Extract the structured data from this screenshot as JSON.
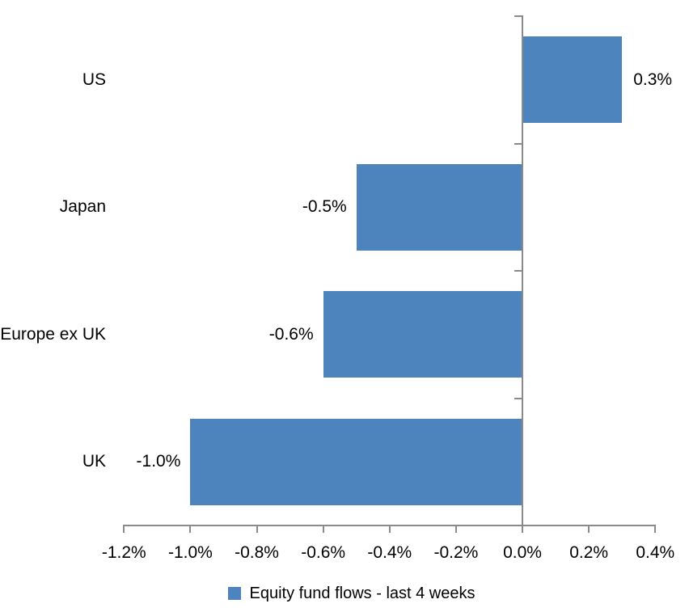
{
  "chart_data": {
    "type": "bar",
    "orientation": "horizontal",
    "title": "",
    "xlabel": "",
    "ylabel": "",
    "categories": [
      "US",
      "Japan",
      "Europe ex UK",
      "UK"
    ],
    "values": [
      0.3,
      -0.5,
      -0.6,
      -1.0
    ],
    "data_labels": [
      "0.3%",
      "-0.5%",
      "-0.6%",
      "-1.0%"
    ],
    "series_name": "Equity fund flows - last 4 weeks",
    "x_tick_labels": [
      "-1.2%",
      "-1.0%",
      "-0.8%",
      "-0.6%",
      "-0.4%",
      "-0.2%",
      "0.0%",
      "0.2%",
      "0.4%"
    ],
    "x_tick_values": [
      -1.2,
      -1.0,
      -0.8,
      -0.6,
      -0.4,
      -0.2,
      0.0,
      0.2,
      0.4
    ],
    "xlim": [
      -1.2,
      0.4
    ],
    "grid": false,
    "legend_position": "bottom",
    "bar_color": "#4E84BD",
    "axis_color": "#8A8A8A",
    "text_color": "#000000",
    "background": "#FFFFFF"
  },
  "legend": {
    "items": [
      {
        "label": "Equity fund flows - last 4 weeks",
        "color": "#4E84BD"
      }
    ]
  }
}
